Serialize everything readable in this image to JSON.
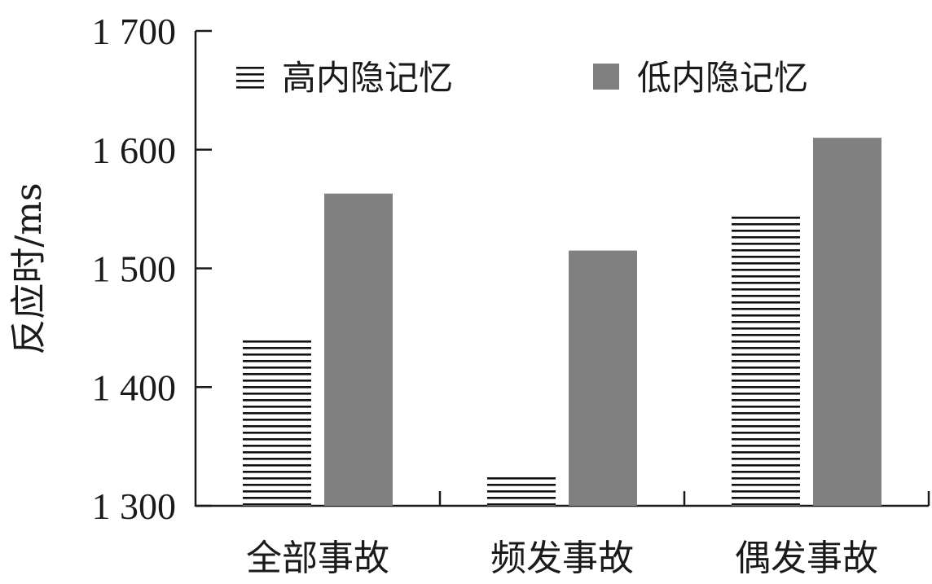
{
  "chart_data": {
    "type": "bar",
    "title": "",
    "xlabel": "",
    "ylabel": "反应时/ms",
    "ylim": [
      1300,
      1700
    ],
    "yticks": [
      1300,
      1400,
      1500,
      1600,
      1700
    ],
    "ytick_labels": [
      "1 300",
      "1 400",
      "1 500",
      "1 600",
      "1 700"
    ],
    "categories": [
      "全部事故",
      "频发事故",
      "偶发事故"
    ],
    "series": [
      {
        "name": "高内隐记忆",
        "values": [
          1442,
          1327,
          1546
        ],
        "pattern": "horizontal-lines",
        "color": "#111111"
      },
      {
        "name": "低内隐记忆",
        "values": [
          1563,
          1515,
          1610
        ],
        "pattern": "solid",
        "color": "#808080"
      }
    ],
    "legend_position": "top",
    "grid": false
  }
}
